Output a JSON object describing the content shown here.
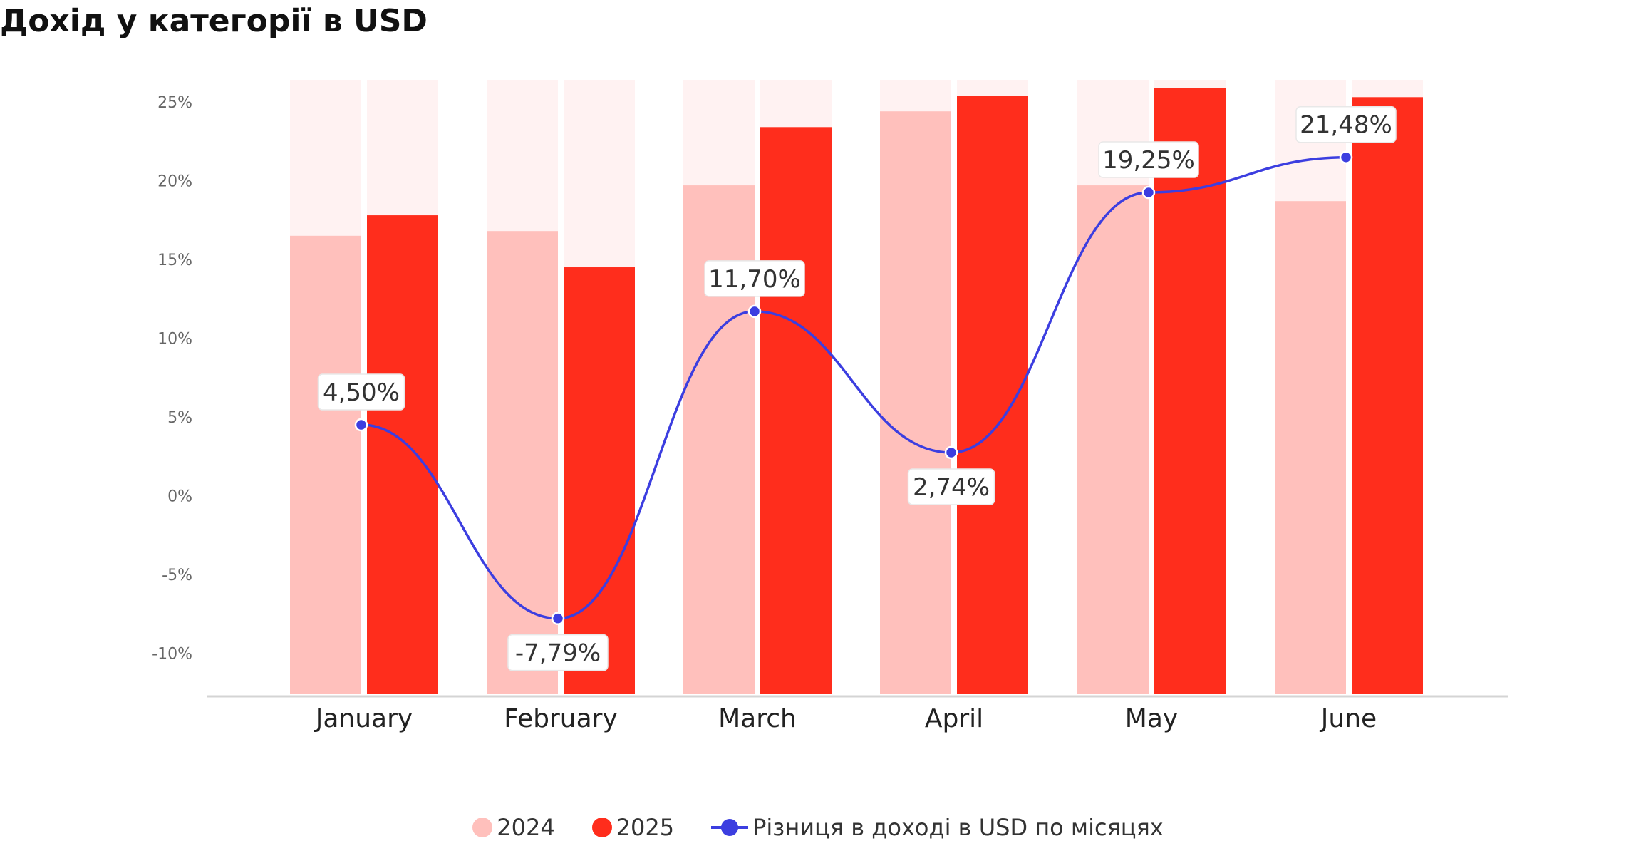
{
  "title": "Дохід у категорії в USD",
  "colors": {
    "c2024": "#ffc0bc",
    "c2025": "#ff2d1c",
    "bg": "#fff2f2",
    "line": "#3c3ee0"
  },
  "legend": [
    {
      "key": "s2024",
      "label": "2024"
    },
    {
      "key": "s2025",
      "label": "2025"
    },
    {
      "key": "diff",
      "label": "Різниця в доході в USD по місяцях"
    }
  ],
  "chart_data": {
    "type": "bar",
    "title": "Дохід у категорії в USD",
    "categories": [
      "January",
      "February",
      "March",
      "April",
      "May",
      "June"
    ],
    "series": [
      {
        "name": "2024",
        "type": "bar",
        "values": [
          16.5,
          16.8,
          19.7,
          24.4,
          19.7,
          18.7
        ]
      },
      {
        "name": "2025",
        "type": "bar",
        "values": [
          17.8,
          14.5,
          23.4,
          25.4,
          25.9,
          25.3
        ]
      },
      {
        "name": "Різниця в доході в USD по місяцях",
        "type": "line",
        "values": [
          4.5,
          -7.79,
          11.7,
          2.74,
          19.25,
          21.48
        ],
        "labels": [
          "4,50%",
          "-7,79%",
          "11,70%",
          "2,74%",
          "19,25%",
          "21,48%"
        ]
      }
    ],
    "yticks": [
      {
        "value": 25,
        "label": "25%"
      },
      {
        "value": 20,
        "label": "20%"
      },
      {
        "value": 15,
        "label": "15%"
      },
      {
        "value": 10,
        "label": "10%"
      },
      {
        "value": 5,
        "label": "5%"
      },
      {
        "value": 0,
        "label": "0%"
      },
      {
        "value": -5,
        "label": "-5%"
      },
      {
        "value": -10,
        "label": "-10%"
      }
    ],
    "ylim": [
      -12.6,
      26.4
    ],
    "xlabel": "",
    "ylabel": "",
    "grid": false,
    "legend_position": "bottom"
  }
}
